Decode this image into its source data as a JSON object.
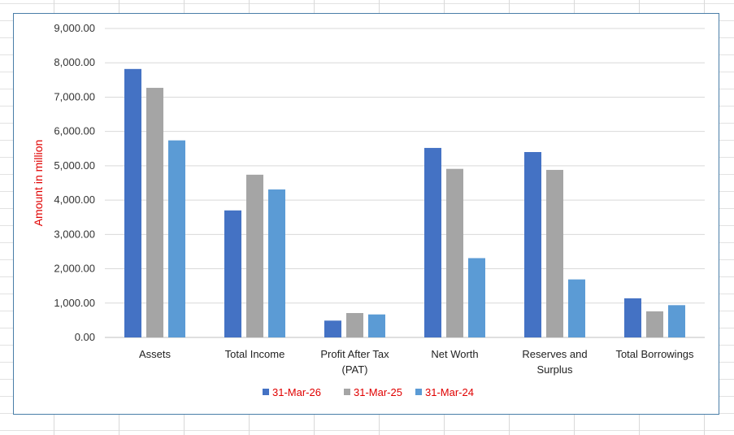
{
  "chart_data": {
    "type": "bar",
    "ylabel": "Amount in million",
    "ylim": [
      0,
      9000
    ],
    "yticks": [
      "0.00",
      "1,000.00",
      "2,000.00",
      "3,000.00",
      "4,000.00",
      "5,000.00",
      "6,000.00",
      "7,000.00",
      "8,000.00",
      "9,000.00"
    ],
    "categories": [
      [
        "Assets"
      ],
      [
        "Total Income"
      ],
      [
        "Profit After Tax",
        "(PAT)"
      ],
      [
        "Net Worth"
      ],
      [
        "Reserves and",
        "Surplus"
      ],
      [
        "Total Borrowings"
      ]
    ],
    "series": [
      {
        "name": "31-Mar-26",
        "color": "#4472c4",
        "values": [
          7820,
          3700,
          490,
          5520,
          5400,
          1140
        ]
      },
      {
        "name": "31-Mar-25",
        "color": "#a5a5a5",
        "values": [
          7270,
          4740,
          710,
          4910,
          4880,
          760
        ]
      },
      {
        "name": "31-Mar-24",
        "color": "#5b9bd5",
        "values": [
          5740,
          4310,
          670,
          2310,
          1690,
          940
        ]
      }
    ],
    "grid": true,
    "legend_position": "bottom"
  }
}
